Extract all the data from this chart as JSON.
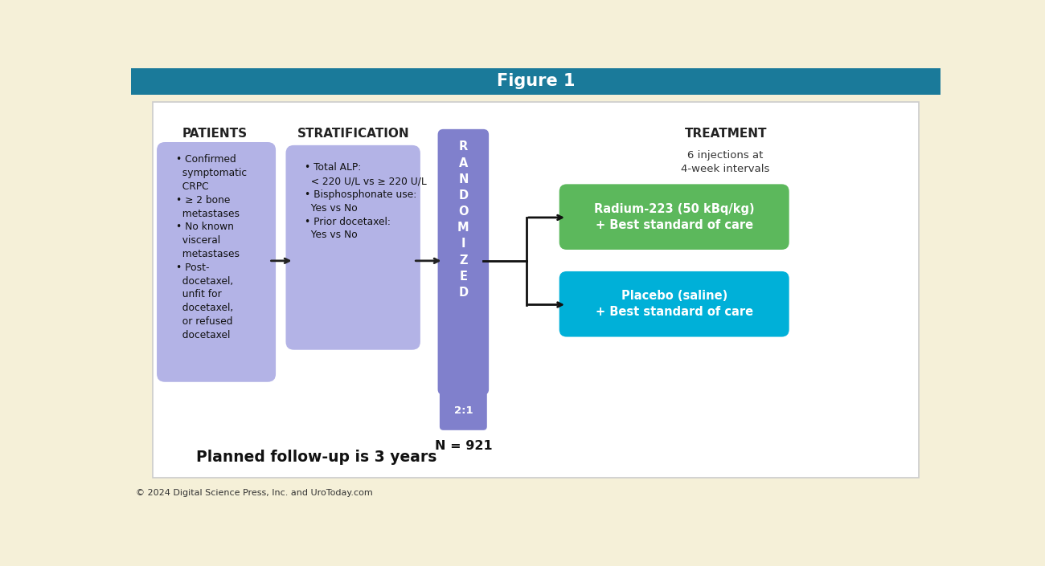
{
  "title": "Figure 1",
  "title_bg_color": "#1a7a9a",
  "title_text_color": "#ffffff",
  "outer_bg_color": "#f5f0d8",
  "inner_bg_color": "#ffffff",
  "inner_border_color": "#cccccc",
  "patients_label": "PATIENTS",
  "patients_box_color": "#b3b3e6",
  "patients_text": "• Confirmed\n  symptomatic\n  CRPC\n• ≥ 2 bone\n  metastases\n• No known\n  visceral\n  metastases\n• Post-\n  docetaxel,\n  unfit for\n  docetaxel,\n  or refused\n  docetaxel",
  "stratification_label": "STRATIFICATION",
  "stratification_box_color": "#b3b3e6",
  "stratification_text": "• Total ALP:\n  < 220 U/L vs ≥ 220 U/L\n• Bisphosphonate use:\n  Yes vs No\n• Prior docetaxel:\n  Yes vs No",
  "randomized_box_color": "#8080cc",
  "randomized_text": "R\nA\nN\nD\nO\nM\nI\nZ\nE\nD",
  "ratio_box_color": "#8080cc",
  "ratio_text": "2:1",
  "n_text": "N = 921",
  "treatment_label": "TREATMENT",
  "injections_text": "6 injections at\n4-week intervals",
  "radium_box_color": "#5cb85c",
  "radium_text": "Radium-223 (50 kBq/kg)\n+ Best standard of care",
  "placebo_box_color": "#00b0d8",
  "placebo_text": "Placebo (saline)\n+ Best standard of care",
  "followup_text": "Planned follow-up is 3 years",
  "copyright_text": "© 2024 Digital Science Press, Inc. and UroToday.com"
}
